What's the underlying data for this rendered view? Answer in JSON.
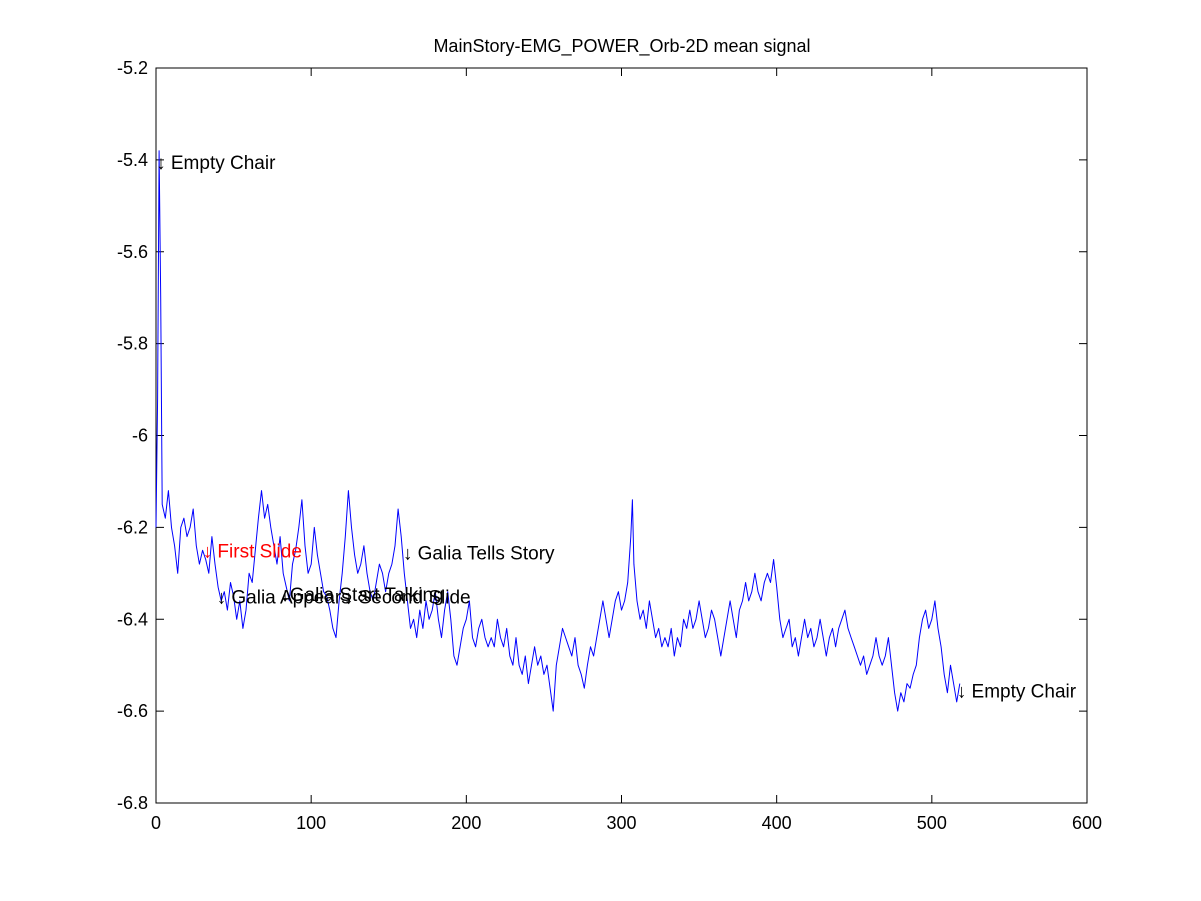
{
  "chart_data": {
    "type": "line",
    "title": "MainStory-EMG_POWER_Orb-2D mean signal",
    "xlabel": "",
    "ylabel": "",
    "xlim": [
      0,
      600
    ],
    "ylim": [
      -6.8,
      -5.2
    ],
    "xticks": [
      0,
      100,
      200,
      300,
      400,
      500,
      600
    ],
    "yticks": [
      -5.2,
      -5.4,
      -5.6,
      -5.8,
      -6,
      -6.2,
      -6.4,
      -6.6,
      -6.8
    ],
    "xtick_labels": [
      "0",
      "100",
      "200",
      "300",
      "400",
      "500",
      "600"
    ],
    "ytick_labels": [
      "-5.2",
      "-5.4",
      "-5.6",
      "-5.8",
      "-6",
      "-6.2",
      "-6.4",
      "-6.6",
      "-6.8"
    ],
    "grid": false,
    "line_color": "#0000ff",
    "series": [
      {
        "keypoints": [
          [
            0,
            -6.2
          ],
          [
            1,
            -5.92
          ],
          [
            2,
            -5.38
          ],
          [
            3,
            -5.7
          ],
          [
            4,
            -6.15
          ],
          [
            6,
            -6.18
          ],
          [
            8,
            -6.12
          ],
          [
            10,
            -6.2
          ],
          [
            12,
            -6.24
          ],
          [
            14,
            -6.3
          ],
          [
            16,
            -6.2
          ],
          [
            18,
            -6.18
          ],
          [
            20,
            -6.22
          ],
          [
            22,
            -6.2
          ],
          [
            24,
            -6.16
          ],
          [
            26,
            -6.24
          ],
          [
            28,
            -6.28
          ],
          [
            30,
            -6.25
          ],
          [
            32,
            -6.27
          ],
          [
            34,
            -6.3
          ],
          [
            36,
            -6.22
          ],
          [
            38,
            -6.28
          ],
          [
            40,
            -6.33
          ],
          [
            42,
            -6.36
          ],
          [
            44,
            -6.34
          ],
          [
            46,
            -6.38
          ],
          [
            48,
            -6.32
          ],
          [
            50,
            -6.35
          ],
          [
            52,
            -6.4
          ],
          [
            54,
            -6.36
          ],
          [
            56,
            -6.42
          ],
          [
            58,
            -6.38
          ],
          [
            60,
            -6.3
          ],
          [
            62,
            -6.32
          ],
          [
            64,
            -6.25
          ],
          [
            66,
            -6.18
          ],
          [
            68,
            -6.12
          ],
          [
            70,
            -6.18
          ],
          [
            72,
            -6.15
          ],
          [
            74,
            -6.2
          ],
          [
            76,
            -6.24
          ],
          [
            78,
            -6.28
          ],
          [
            80,
            -6.22
          ],
          [
            82,
            -6.3
          ],
          [
            84,
            -6.33
          ],
          [
            86,
            -6.36
          ],
          [
            88,
            -6.28
          ],
          [
            90,
            -6.25
          ],
          [
            92,
            -6.2
          ],
          [
            94,
            -6.14
          ],
          [
            96,
            -6.24
          ],
          [
            98,
            -6.3
          ],
          [
            100,
            -6.28
          ],
          [
            102,
            -6.2
          ],
          [
            104,
            -6.26
          ],
          [
            106,
            -6.3
          ],
          [
            108,
            -6.34
          ],
          [
            110,
            -6.35
          ],
          [
            112,
            -6.38
          ],
          [
            114,
            -6.42
          ],
          [
            116,
            -6.44
          ],
          [
            118,
            -6.36
          ],
          [
            120,
            -6.3
          ],
          [
            122,
            -6.22
          ],
          [
            124,
            -6.12
          ],
          [
            126,
            -6.2
          ],
          [
            128,
            -6.26
          ],
          [
            130,
            -6.3
          ],
          [
            132,
            -6.28
          ],
          [
            134,
            -6.24
          ],
          [
            136,
            -6.3
          ],
          [
            138,
            -6.34
          ],
          [
            140,
            -6.36
          ],
          [
            142,
            -6.32
          ],
          [
            144,
            -6.28
          ],
          [
            146,
            -6.3
          ],
          [
            148,
            -6.34
          ],
          [
            150,
            -6.3
          ],
          [
            152,
            -6.28
          ],
          [
            154,
            -6.24
          ],
          [
            156,
            -6.16
          ],
          [
            158,
            -6.22
          ],
          [
            160,
            -6.3
          ],
          [
            162,
            -6.36
          ],
          [
            164,
            -6.42
          ],
          [
            166,
            -6.4
          ],
          [
            168,
            -6.44
          ],
          [
            170,
            -6.38
          ],
          [
            172,
            -6.42
          ],
          [
            174,
            -6.36
          ],
          [
            176,
            -6.4
          ],
          [
            178,
            -6.38
          ],
          [
            180,
            -6.34
          ],
          [
            182,
            -6.4
          ],
          [
            184,
            -6.44
          ],
          [
            186,
            -6.38
          ],
          [
            188,
            -6.34
          ],
          [
            190,
            -6.4
          ],
          [
            192,
            -6.48
          ],
          [
            194,
            -6.5
          ],
          [
            196,
            -6.46
          ],
          [
            198,
            -6.42
          ],
          [
            200,
            -6.4
          ],
          [
            202,
            -6.36
          ],
          [
            204,
            -6.44
          ],
          [
            206,
            -6.46
          ],
          [
            208,
            -6.42
          ],
          [
            210,
            -6.4
          ],
          [
            212,
            -6.44
          ],
          [
            214,
            -6.46
          ],
          [
            216,
            -6.44
          ],
          [
            218,
            -6.46
          ],
          [
            220,
            -6.4
          ],
          [
            222,
            -6.44
          ],
          [
            224,
            -6.46
          ],
          [
            226,
            -6.42
          ],
          [
            228,
            -6.48
          ],
          [
            230,
            -6.5
          ],
          [
            232,
            -6.44
          ],
          [
            234,
            -6.5
          ],
          [
            236,
            -6.52
          ],
          [
            238,
            -6.48
          ],
          [
            240,
            -6.54
          ],
          [
            242,
            -6.5
          ],
          [
            244,
            -6.46
          ],
          [
            246,
            -6.5
          ],
          [
            248,
            -6.48
          ],
          [
            250,
            -6.52
          ],
          [
            252,
            -6.5
          ],
          [
            254,
            -6.55
          ],
          [
            256,
            -6.6
          ],
          [
            258,
            -6.5
          ],
          [
            260,
            -6.46
          ],
          [
            262,
            -6.42
          ],
          [
            264,
            -6.44
          ],
          [
            266,
            -6.46
          ],
          [
            268,
            -6.48
          ],
          [
            270,
            -6.44
          ],
          [
            272,
            -6.5
          ],
          [
            274,
            -6.52
          ],
          [
            276,
            -6.55
          ],
          [
            278,
            -6.5
          ],
          [
            280,
            -6.46
          ],
          [
            282,
            -6.48
          ],
          [
            284,
            -6.44
          ],
          [
            286,
            -6.4
          ],
          [
            288,
            -6.36
          ],
          [
            290,
            -6.4
          ],
          [
            292,
            -6.44
          ],
          [
            294,
            -6.4
          ],
          [
            296,
            -6.36
          ],
          [
            298,
            -6.34
          ],
          [
            300,
            -6.38
          ],
          [
            302,
            -6.36
          ],
          [
            304,
            -6.32
          ],
          [
            306,
            -6.22
          ],
          [
            307,
            -6.14
          ],
          [
            308,
            -6.28
          ],
          [
            310,
            -6.36
          ],
          [
            312,
            -6.4
          ],
          [
            314,
            -6.38
          ],
          [
            316,
            -6.42
          ],
          [
            318,
            -6.36
          ],
          [
            320,
            -6.4
          ],
          [
            322,
            -6.44
          ],
          [
            324,
            -6.42
          ],
          [
            326,
            -6.46
          ],
          [
            328,
            -6.44
          ],
          [
            330,
            -6.46
          ],
          [
            332,
            -6.42
          ],
          [
            334,
            -6.48
          ],
          [
            336,
            -6.44
          ],
          [
            338,
            -6.46
          ],
          [
            340,
            -6.4
          ],
          [
            342,
            -6.42
          ],
          [
            344,
            -6.38
          ],
          [
            346,
            -6.42
          ],
          [
            348,
            -6.4
          ],
          [
            350,
            -6.36
          ],
          [
            352,
            -6.4
          ],
          [
            354,
            -6.44
          ],
          [
            356,
            -6.42
          ],
          [
            358,
            -6.38
          ],
          [
            360,
            -6.4
          ],
          [
            362,
            -6.44
          ],
          [
            364,
            -6.48
          ],
          [
            366,
            -6.44
          ],
          [
            368,
            -6.4
          ],
          [
            370,
            -6.36
          ],
          [
            372,
            -6.4
          ],
          [
            374,
            -6.44
          ],
          [
            376,
            -6.38
          ],
          [
            378,
            -6.36
          ],
          [
            380,
            -6.32
          ],
          [
            382,
            -6.36
          ],
          [
            384,
            -6.34
          ],
          [
            386,
            -6.3
          ],
          [
            388,
            -6.34
          ],
          [
            390,
            -6.36
          ],
          [
            392,
            -6.32
          ],
          [
            394,
            -6.3
          ],
          [
            396,
            -6.32
          ],
          [
            398,
            -6.27
          ],
          [
            400,
            -6.33
          ],
          [
            402,
            -6.4
          ],
          [
            404,
            -6.44
          ],
          [
            406,
            -6.42
          ],
          [
            408,
            -6.4
          ],
          [
            410,
            -6.46
          ],
          [
            412,
            -6.44
          ],
          [
            414,
            -6.48
          ],
          [
            416,
            -6.44
          ],
          [
            418,
            -6.4
          ],
          [
            420,
            -6.44
          ],
          [
            422,
            -6.42
          ],
          [
            424,
            -6.46
          ],
          [
            426,
            -6.44
          ],
          [
            428,
            -6.4
          ],
          [
            430,
            -6.44
          ],
          [
            432,
            -6.48
          ],
          [
            434,
            -6.44
          ],
          [
            436,
            -6.42
          ],
          [
            438,
            -6.46
          ],
          [
            440,
            -6.42
          ],
          [
            442,
            -6.4
          ],
          [
            444,
            -6.38
          ],
          [
            446,
            -6.42
          ],
          [
            448,
            -6.44
          ],
          [
            450,
            -6.46
          ],
          [
            452,
            -6.48
          ],
          [
            454,
            -6.5
          ],
          [
            456,
            -6.48
          ],
          [
            458,
            -6.52
          ],
          [
            460,
            -6.5
          ],
          [
            462,
            -6.48
          ],
          [
            464,
            -6.44
          ],
          [
            466,
            -6.48
          ],
          [
            468,
            -6.5
          ],
          [
            470,
            -6.48
          ],
          [
            472,
            -6.44
          ],
          [
            474,
            -6.5
          ],
          [
            476,
            -6.56
          ],
          [
            478,
            -6.6
          ],
          [
            480,
            -6.56
          ],
          [
            482,
            -6.58
          ],
          [
            484,
            -6.54
          ],
          [
            486,
            -6.55
          ],
          [
            488,
            -6.52
          ],
          [
            490,
            -6.5
          ],
          [
            492,
            -6.44
          ],
          [
            494,
            -6.4
          ],
          [
            496,
            -6.38
          ],
          [
            498,
            -6.42
          ],
          [
            500,
            -6.4
          ],
          [
            502,
            -6.36
          ],
          [
            504,
            -6.42
          ],
          [
            506,
            -6.46
          ],
          [
            508,
            -6.52
          ],
          [
            510,
            -6.56
          ],
          [
            512,
            -6.5
          ],
          [
            514,
            -6.54
          ],
          [
            516,
            -6.58
          ],
          [
            518,
            -6.54
          ]
        ]
      }
    ],
    "annotations": [
      {
        "text": "↓ Empty Chair",
        "x": 2,
        "y": -5.405,
        "color": "#000000"
      },
      {
        "text": "↓ First Slide",
        "x": 32,
        "y": -6.25,
        "color": "#ff0000"
      },
      {
        "text": "↓ Galia Appears",
        "x": 41,
        "y": -6.35,
        "color": "#000000"
      },
      {
        "text": "↓Galia Start Talking",
        "x": 82,
        "y": -6.345,
        "color": "#000000"
      },
      {
        "text": "↓ Second Slide",
        "x": 123,
        "y": -6.35,
        "color": "#000000"
      },
      {
        "text": "↓ Galia Tells Story",
        "x": 161,
        "y": -6.255,
        "color": "#000000"
      },
      {
        "text": "↓ Empty Chair",
        "x": 518,
        "y": -6.555,
        "color": "#000000"
      }
    ]
  }
}
